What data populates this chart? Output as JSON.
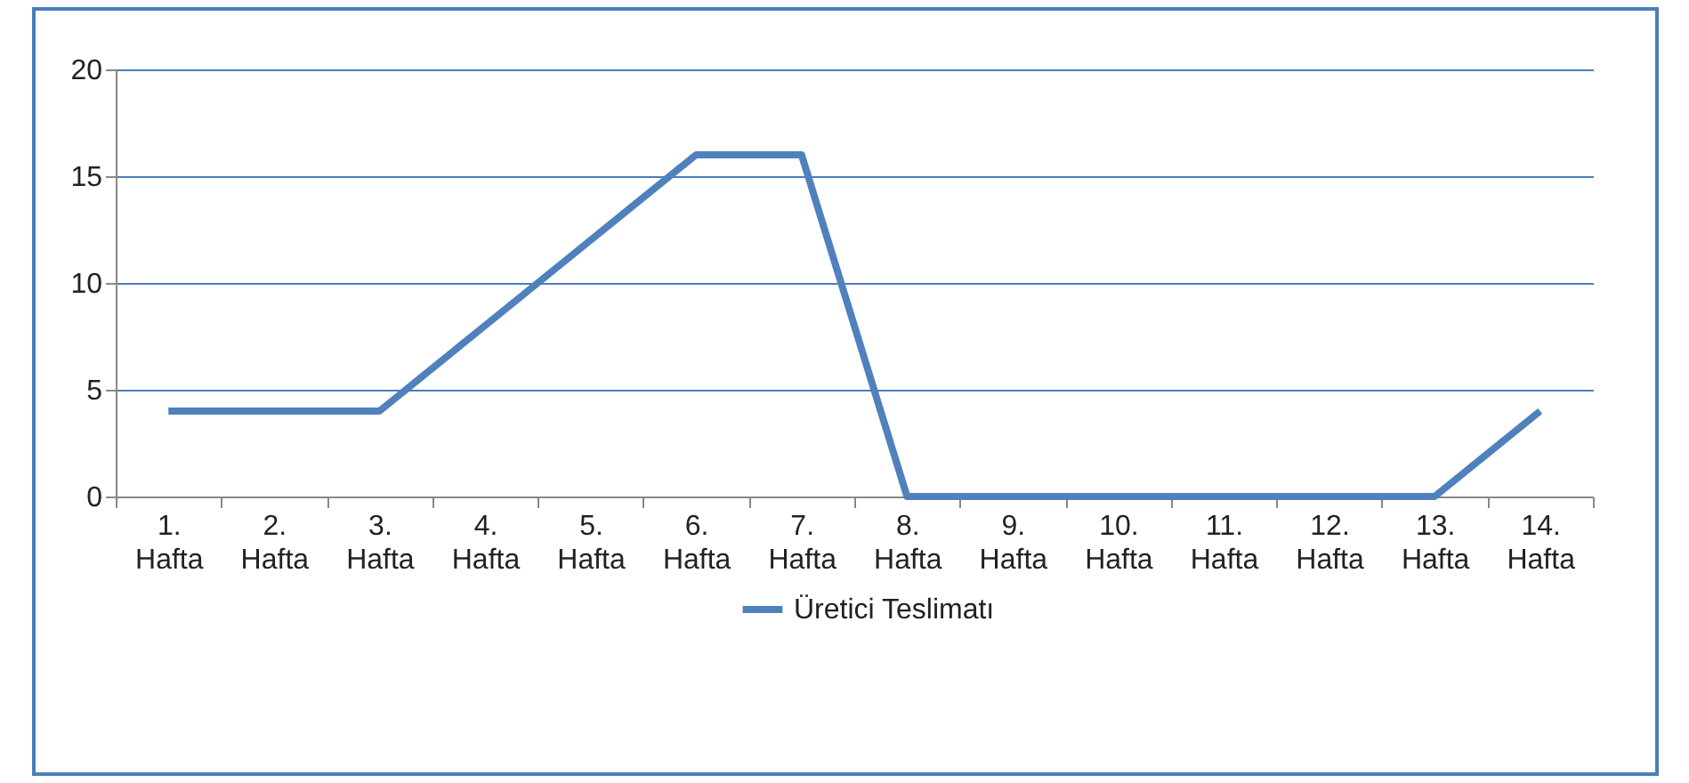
{
  "chart_data": {
    "type": "line",
    "categories": [
      "1. Hafta",
      "2. Hafta",
      "3. Hafta",
      "4. Hafta",
      "5. Hafta",
      "6. Hafta",
      "7. Hafta",
      "8. Hafta",
      "9. Hafta",
      "10. Hafta",
      "11. Hafta",
      "12. Hafta",
      "13. Hafta",
      "14. Hafta"
    ],
    "series": [
      {
        "name": "Üretici Teslimatı",
        "color": "#4f81bd",
        "values": [
          4,
          4,
          4,
          8,
          12,
          16,
          16,
          0,
          0,
          0,
          0,
          0,
          0,
          4
        ]
      }
    ],
    "ylim": [
      0,
      20
    ],
    "yticks": [
      0,
      5,
      10,
      15,
      20
    ],
    "grid": "y",
    "legend": "bottom",
    "marker": "none",
    "line_style": "solid"
  }
}
